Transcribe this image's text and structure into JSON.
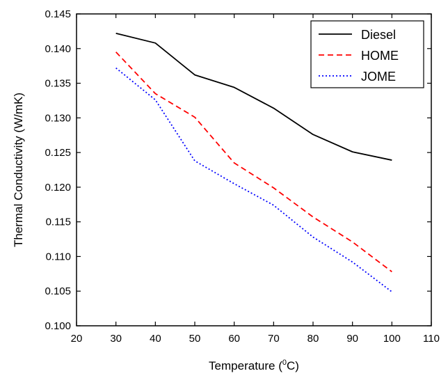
{
  "chart_data": {
    "type": "line",
    "title": "",
    "xlabel_prefix": "Temperature (",
    "xlabel_sup": "0",
    "xlabel_suffix": "C)",
    "ylabel": "Thermal Conductivity (W/mK)",
    "xlim": [
      20,
      110
    ],
    "ylim": [
      0.1,
      0.145
    ],
    "x_ticks": [
      "20",
      "30",
      "40",
      "50",
      "60",
      "70",
      "80",
      "90",
      "100",
      "110"
    ],
    "y_ticks": [
      "0.100",
      "0.105",
      "0.110",
      "0.115",
      "0.120",
      "0.125",
      "0.130",
      "0.135",
      "0.140",
      "0.145"
    ],
    "x": [
      30,
      40,
      50,
      60,
      70,
      80,
      90,
      100
    ],
    "legend_position": "top-right",
    "grid": false,
    "series": [
      {
        "name": "Diesel",
        "color": "#000000",
        "line_style": "solid",
        "values": [
          0.1422,
          0.1408,
          0.1362,
          0.1344,
          0.1314,
          0.1276,
          0.1251,
          0.1239
        ]
      },
      {
        "name": "HOME",
        "color": "#ff0000",
        "line_style": "dashed",
        "values": [
          0.1395,
          0.1335,
          0.1301,
          0.1235,
          0.1199,
          0.1157,
          0.1121,
          0.1078
        ]
      },
      {
        "name": "JOME",
        "color": "#0000ff",
        "line_style": "dotted",
        "values": [
          0.1372,
          0.1326,
          0.1238,
          0.1205,
          0.1174,
          0.1128,
          0.1092,
          0.1049
        ]
      }
    ]
  }
}
